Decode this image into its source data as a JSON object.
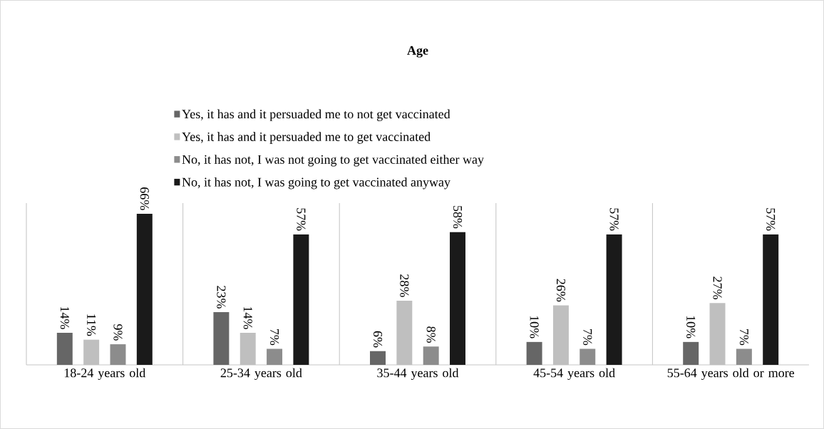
{
  "chart_data": {
    "type": "bar",
    "title": "**Age**",
    "legend": "top",
    "categories": [
      "18-24 years old",
      "25-34 years old",
      "35-44 years old",
      "45-54 years old",
      "55-64 years old or more"
    ],
    "series": [
      {
        "name": "Yes, it has and it persuaded me to not get vaccinated",
        "color": "#666666",
        "values": [
          14,
          23,
          6,
          10,
          10
        ],
        "value_labels": [
          "14%",
          "23%",
          "6%",
          "10%",
          "10%"
        ]
      },
      {
        "name": "Yes, it has and it persuaded me to get vaccinated",
        "color": "#bfbfbf",
        "values": [
          11,
          14,
          28,
          26,
          27
        ],
        "value_labels": [
          "11%",
          "14%",
          "28%",
          "26%",
          "27%"
        ]
      },
      {
        "name": "No, it has not, I was not going to get vaccinated either way",
        "color": "#8c8c8c",
        "values": [
          9,
          7,
          8,
          7,
          7
        ],
        "value_labels": [
          "9%",
          "7%",
          "8%",
          "7%",
          "7%"
        ]
      },
      {
        "name": "No, it has not, I was going to get vaccinated anyway",
        "color": "#1a1a1a",
        "values": [
          66,
          57,
          58,
          57,
          57
        ],
        "value_labels": [
          "66%",
          "57%",
          "58%",
          "57%",
          "57%"
        ]
      }
    ]
  }
}
